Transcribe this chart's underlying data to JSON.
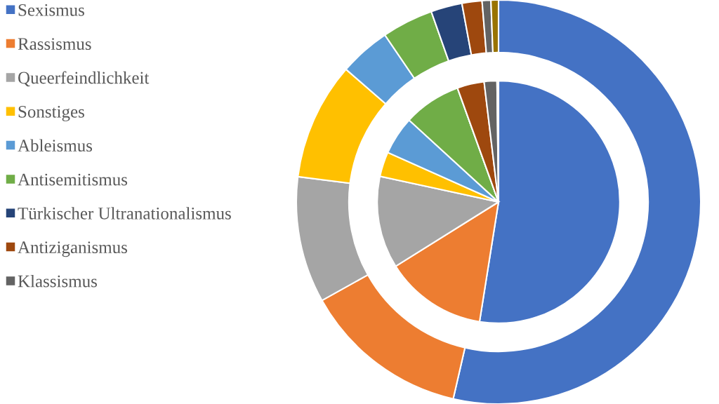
{
  "chart_data": {
    "type": "donut",
    "legend": "left",
    "categories": [
      "Sexismus",
      "Rassismus",
      "Queerfeindlichkeit",
      "Sonstiges",
      "Ableismus",
      "Antisemitismus",
      "Türkischer Ultranationalismus",
      "Antiziganismus",
      "Klassismus",
      null
    ],
    "colors": [
      "#4472c4",
      "#ed7d31",
      "#a5a5a5",
      "#ffc000",
      "#5b9bd5",
      "#70ad47",
      "#264478",
      "#9e480e",
      "#636363",
      "#997300"
    ],
    "series": [
      {
        "values": [
          53.6,
          13.3,
          10.1,
          9.4,
          4.1,
          4.1,
          2.5,
          1.6,
          0.7,
          0.6
        ]
      },
      {
        "values": [
          52.5,
          13.6,
          12.3,
          3.3,
          5.1,
          7.7,
          0,
          3.6,
          1.7,
          0.2
        ]
      }
    ]
  }
}
